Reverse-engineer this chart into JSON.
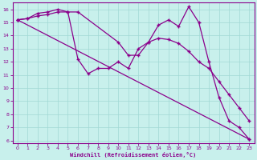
{
  "xlabel": "Windchill (Refroidissement éolien,°C)",
  "line_color": "#8B008B",
  "bg_color": "#c8f0ec",
  "grid_color": "#a0d8d4",
  "xlim": [
    -0.5,
    23.5
  ],
  "ylim": [
    5.8,
    16.5
  ],
  "yticks": [
    6,
    7,
    8,
    9,
    10,
    11,
    12,
    13,
    14,
    15,
    16
  ],
  "xticks": [
    0,
    1,
    2,
    3,
    4,
    5,
    6,
    7,
    8,
    9,
    10,
    11,
    12,
    13,
    14,
    15,
    16,
    17,
    18,
    19,
    20,
    21,
    22,
    23
  ],
  "line1_x": [
    0,
    1,
    2,
    3,
    4,
    5,
    6,
    10,
    11,
    12,
    13,
    14,
    15,
    16,
    17,
    18,
    19,
    20,
    21,
    22,
    23
  ],
  "line1_y": [
    15.2,
    15.3,
    15.7,
    15.8,
    16.0,
    15.8,
    15.8,
    13.5,
    12.5,
    12.5,
    13.5,
    14.8,
    15.2,
    14.7,
    16.2,
    15.0,
    12.0,
    9.3,
    7.5,
    7.0,
    6.1
  ],
  "line2_x": [
    0,
    1,
    2,
    3,
    4,
    5,
    6,
    7,
    8,
    9,
    10,
    11,
    12,
    13,
    14,
    15,
    16,
    17,
    18,
    19,
    20,
    21,
    22,
    23
  ],
  "line2_y": [
    15.2,
    15.3,
    15.5,
    15.6,
    15.8,
    15.8,
    12.2,
    11.1,
    11.5,
    11.5,
    12.0,
    11.5,
    13.0,
    13.5,
    13.8,
    13.7,
    13.4,
    12.8,
    12.0,
    11.5,
    10.5,
    9.5,
    8.5,
    7.5
  ],
  "line3_x": [
    0,
    23
  ],
  "line3_y": [
    15.2,
    6.1
  ],
  "marker": "+"
}
